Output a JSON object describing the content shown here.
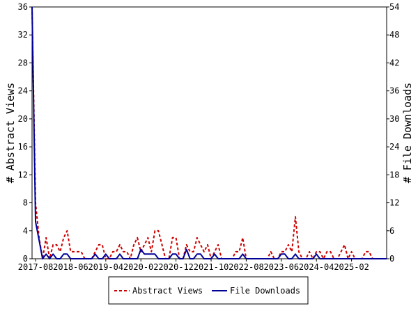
{
  "chart_data": {
    "type": "line",
    "ylabel_left": "# Abstract Views",
    "ylabel_right": "# File Downloads",
    "xlabel": "",
    "grid": false,
    "legend_position": "bottom-center",
    "x_start": "2017-07",
    "x_end": "2025-12",
    "x_ticks": [
      "2017-08",
      "2018-06",
      "2019-04",
      "2020-02",
      "2020-12",
      "2021-10",
      "2022-08",
      "2023-06",
      "2024-04",
      "2025-02"
    ],
    "y_left": {
      "min": 0,
      "max": 36,
      "ticks": [
        0,
        4,
        8,
        12,
        16,
        20,
        24,
        28,
        32,
        36
      ]
    },
    "y_right": {
      "min": 0,
      "max": 54,
      "ticks": [
        0,
        6,
        12,
        18,
        24,
        30,
        36,
        42,
        48,
        54
      ]
    },
    "series": [
      {
        "name": "Abstract Views",
        "axis": "left",
        "color": "#cc0000",
        "style": "dashed",
        "dates": [
          "2017-07",
          "2017-08",
          "2017-09",
          "2017-10",
          "2017-11",
          "2017-12",
          "2018-01",
          "2018-02",
          "2018-03",
          "2018-04",
          "2018-05",
          "2018-06",
          "2018-07",
          "2018-08",
          "2018-09",
          "2018-10",
          "2018-11",
          "2018-12",
          "2019-01",
          "2019-02",
          "2019-03",
          "2019-04",
          "2019-05",
          "2019-06",
          "2019-07",
          "2019-08",
          "2019-09",
          "2019-10",
          "2019-11",
          "2019-12",
          "2020-01",
          "2020-02",
          "2020-03",
          "2020-04",
          "2020-05",
          "2020-06",
          "2020-07",
          "2020-08",
          "2020-09",
          "2020-10",
          "2020-11",
          "2020-12",
          "2021-01",
          "2021-02",
          "2021-03",
          "2021-04",
          "2021-05",
          "2021-06",
          "2021-07",
          "2021-08",
          "2021-09",
          "2021-10",
          "2021-11",
          "2021-12",
          "2022-01",
          "2022-02",
          "2022-03",
          "2022-04",
          "2022-05",
          "2022-06",
          "2022-07",
          "2022-08",
          "2022-09",
          "2022-10",
          "2022-11",
          "2022-12",
          "2023-01",
          "2023-02",
          "2023-03",
          "2023-04",
          "2023-05",
          "2023-06",
          "2023-07",
          "2023-08",
          "2023-09",
          "2023-10",
          "2023-11",
          "2023-12",
          "2024-01",
          "2024-02",
          "2024-03",
          "2024-04",
          "2024-05",
          "2024-06",
          "2024-07",
          "2024-08",
          "2024-09",
          "2024-10",
          "2024-11",
          "2024-12",
          "2025-01",
          "2025-02",
          "2025-03",
          "2025-04",
          "2025-05",
          "2025-06",
          "2025-07",
          "2025-08",
          "2025-09",
          "2025-10",
          "2025-11",
          "2025-12"
        ],
        "values": [
          36,
          8,
          3,
          0,
          3,
          0,
          2,
          2,
          1,
          3,
          4,
          1,
          1,
          1,
          1,
          0,
          0,
          0,
          1,
          2,
          2,
          0,
          0,
          1,
          1,
          2,
          1,
          1,
          0,
          2,
          3,
          1,
          2,
          3,
          1,
          4,
          4,
          2,
          0,
          0,
          3,
          3,
          0,
          0,
          2,
          1,
          1,
          3,
          2,
          1,
          2,
          0,
          1,
          2,
          0,
          0,
          0,
          0,
          1,
          1,
          3,
          0,
          0,
          0,
          0,
          0,
          0,
          0,
          1,
          0,
          0,
          1,
          1,
          2,
          1,
          6,
          1,
          0,
          0,
          1,
          0,
          1,
          1,
          0,
          1,
          1,
          0,
          0,
          1,
          2,
          0,
          1,
          0,
          0,
          0,
          1,
          1,
          0,
          0,
          0,
          0,
          0
        ]
      },
      {
        "name": "File Downloads",
        "axis": "right",
        "color": "#000099",
        "style": "solid",
        "dates": [
          "2017-07",
          "2017-08",
          "2017-09",
          "2017-10",
          "2017-11",
          "2017-12",
          "2018-01",
          "2018-02",
          "2018-03",
          "2018-04",
          "2018-05",
          "2018-06",
          "2018-07",
          "2018-08",
          "2018-09",
          "2018-10",
          "2018-11",
          "2018-12",
          "2019-01",
          "2019-02",
          "2019-03",
          "2019-04",
          "2019-05",
          "2019-06",
          "2019-07",
          "2019-08",
          "2019-09",
          "2019-10",
          "2019-11",
          "2019-12",
          "2020-01",
          "2020-02",
          "2020-03",
          "2020-04",
          "2020-05",
          "2020-06",
          "2020-07",
          "2020-08",
          "2020-09",
          "2020-10",
          "2020-11",
          "2020-12",
          "2021-01",
          "2021-02",
          "2021-03",
          "2021-04",
          "2021-05",
          "2021-06",
          "2021-07",
          "2021-08",
          "2021-09",
          "2021-10",
          "2021-11",
          "2021-12",
          "2022-01",
          "2022-02",
          "2022-03",
          "2022-04",
          "2022-05",
          "2022-06",
          "2022-07",
          "2022-08",
          "2022-09",
          "2022-10",
          "2022-11",
          "2022-12",
          "2023-01",
          "2023-02",
          "2023-03",
          "2023-04",
          "2023-05",
          "2023-06",
          "2023-07",
          "2023-08",
          "2023-09",
          "2023-10",
          "2023-11",
          "2023-12",
          "2024-01",
          "2024-02",
          "2024-03",
          "2024-04",
          "2024-05",
          "2024-06",
          "2024-07",
          "2024-08",
          "2024-09",
          "2024-10",
          "2024-11",
          "2024-12",
          "2025-01",
          "2025-02",
          "2025-03",
          "2025-04",
          "2025-05",
          "2025-06",
          "2025-07",
          "2025-08",
          "2025-09",
          "2025-10",
          "2025-11",
          "2025-12"
        ],
        "values": [
          54,
          8,
          4,
          0,
          1,
          0,
          1,
          0,
          0,
          1,
          1,
          0,
          0,
          0,
          0,
          0,
          0,
          0,
          1,
          0,
          0,
          1,
          0,
          0,
          0,
          1,
          0,
          0,
          0,
          0,
          0,
          2,
          1,
          1,
          1,
          1,
          0,
          0,
          0,
          0,
          1,
          1,
          0,
          0,
          2,
          0,
          0,
          1,
          1,
          0,
          0,
          0,
          1,
          0,
          0,
          0,
          0,
          0,
          0,
          0,
          1,
          0,
          0,
          0,
          0,
          0,
          0,
          0,
          0,
          0,
          0,
          1,
          1,
          0,
          0,
          1,
          0,
          0,
          0,
          0,
          0,
          1,
          0,
          0,
          0,
          0,
          0,
          0,
          0,
          0,
          0,
          0,
          0,
          0,
          0,
          0,
          0,
          0,
          0,
          0,
          0,
          0
        ]
      }
    ]
  }
}
